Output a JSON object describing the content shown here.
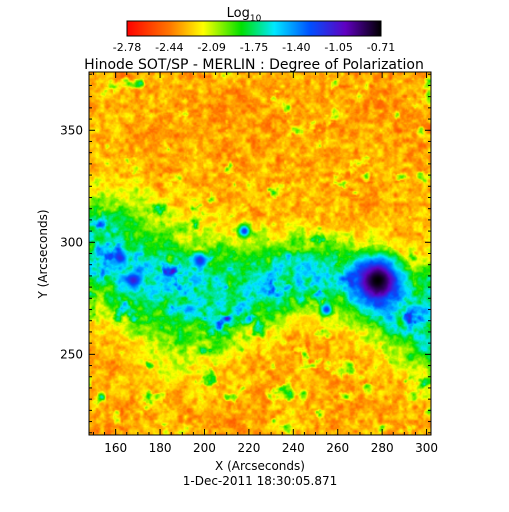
{
  "chart_data": {
    "type": "heatmap",
    "title": "Hinode SOT/SP - MERLIN : Degree of Polarization",
    "xlabel": "X (Arcseconds)",
    "ylabel": "Y (Arcseconds)",
    "timestamp": "1-Dec-2011 18:30:05.871",
    "colorbar": {
      "label_main": "Log",
      "label_sub": "10",
      "range": [
        -2.78,
        -0.71
      ],
      "ticks": [
        "-2.78",
        "-2.44",
        "-2.09",
        "-1.75",
        "-1.40",
        "-1.05",
        "-0.71"
      ],
      "colormap": "rainbow (red → orange → yellow → green → cyan → blue → purple → black)"
    },
    "xlim": [
      148,
      302
    ],
    "ylim": [
      214,
      376
    ],
    "x_ticks": [
      160,
      180,
      200,
      220,
      240,
      260,
      280,
      300
    ],
    "y_ticks": [
      250,
      300,
      350
    ],
    "features": [
      {
        "name": "sunspot",
        "x": 278,
        "y": 283,
        "radius": 10,
        "value": -0.71
      },
      {
        "name": "pore",
        "x": 168,
        "y": 283,
        "radius": 3.5,
        "value": -1.1
      },
      {
        "name": "pore",
        "x": 162,
        "y": 293,
        "radius": 3,
        "value": -1.15
      },
      {
        "name": "pore",
        "x": 198,
        "y": 292,
        "radius": 3,
        "value": -1.15
      },
      {
        "name": "pore",
        "x": 218,
        "y": 305,
        "radius": 2.5,
        "value": -1.2
      },
      {
        "name": "pore",
        "x": 255,
        "y": 270,
        "radius": 2.5,
        "value": -1.2
      }
    ]
  }
}
